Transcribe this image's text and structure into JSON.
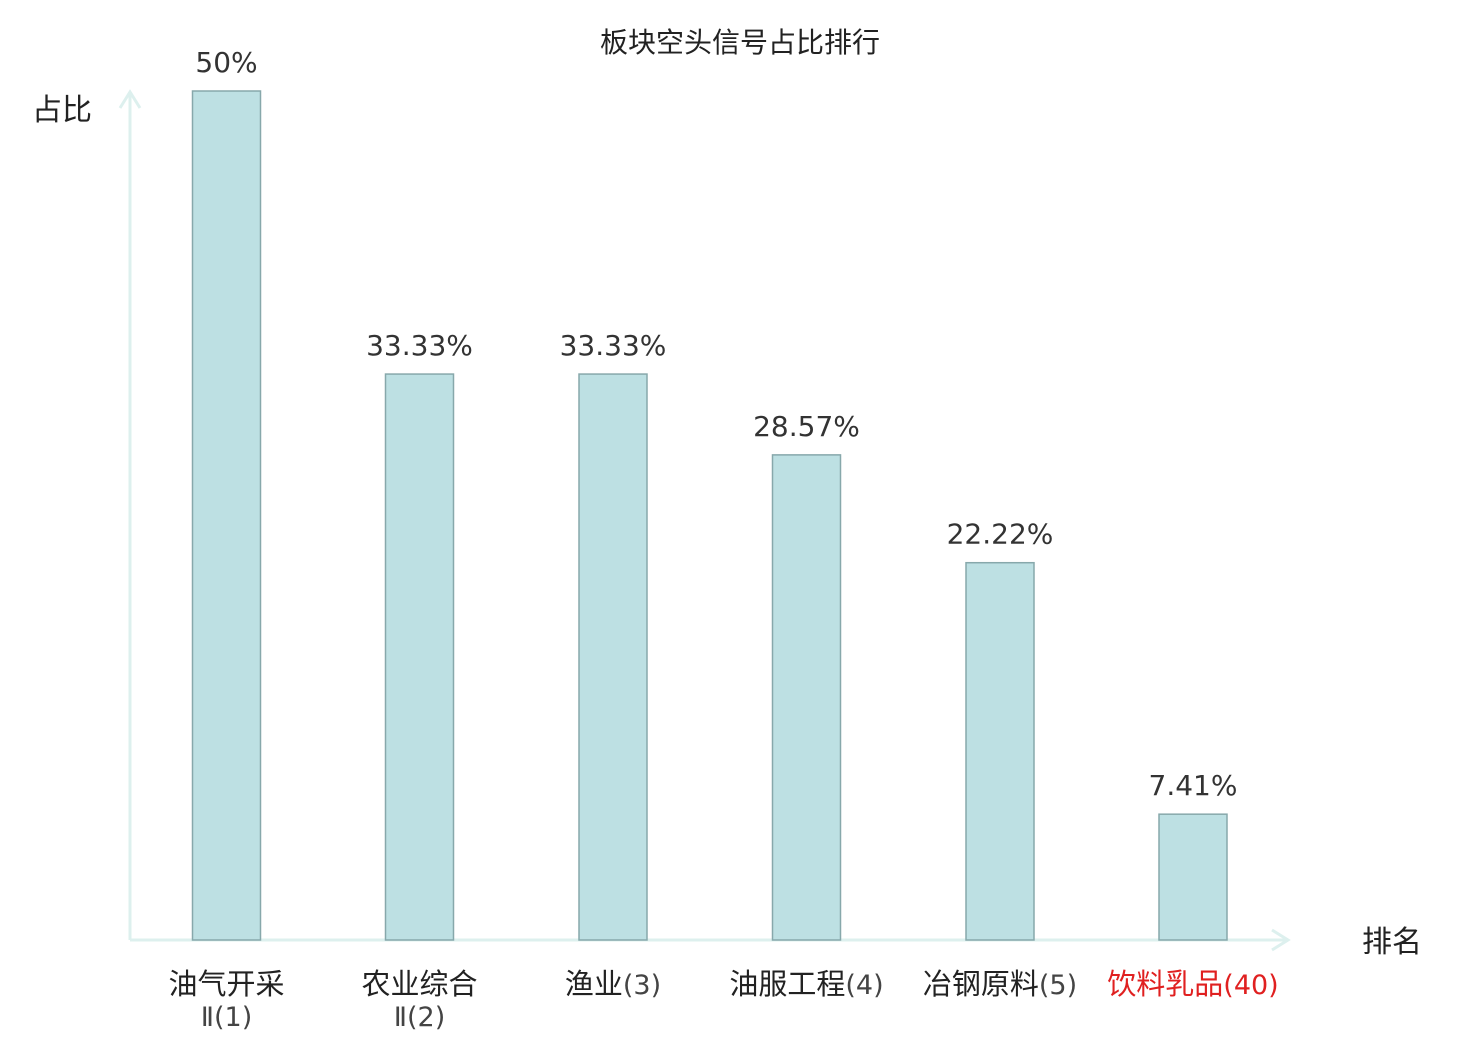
{
  "chart_data": {
    "type": "bar",
    "title": "板块空头信号占比排行",
    "xlabel": "排名",
    "ylabel": "占比",
    "ylim": [
      0,
      50
    ],
    "grid": false,
    "legend": "none",
    "categories": [
      {
        "name_lines": [
          "油气开采"
        ],
        "rank_prefix": "Ⅱ",
        "rank": "(1)",
        "highlight": false
      },
      {
        "name_lines": [
          "农业综合"
        ],
        "rank_prefix": "Ⅱ",
        "rank": "(2)",
        "highlight": false
      },
      {
        "name_lines": [
          "渔业"
        ],
        "rank_prefix": "",
        "rank": "(3)",
        "highlight": false
      },
      {
        "name_lines": [
          "油服工程"
        ],
        "rank_prefix": "",
        "rank": "(4)",
        "highlight": false
      },
      {
        "name_lines": [
          "冶钢原料"
        ],
        "rank_prefix": "",
        "rank": "(5)",
        "highlight": false
      },
      {
        "name_lines": [
          "饮料乳品"
        ],
        "rank_prefix": "",
        "rank": "(40)",
        "highlight": true
      }
    ],
    "values": [
      50,
      33.33,
      33.33,
      28.57,
      22.22,
      7.41
    ],
    "value_labels": [
      "50%",
      "33.33%",
      "33.33%",
      "28.57%",
      "22.22%",
      "7.41%"
    ]
  },
  "colors": {
    "bar_fill": "#bde0e3",
    "bar_stroke": "#87a8ab",
    "axis": "#ddf0ee",
    "text": "#333333",
    "highlight": "#e02020"
  }
}
